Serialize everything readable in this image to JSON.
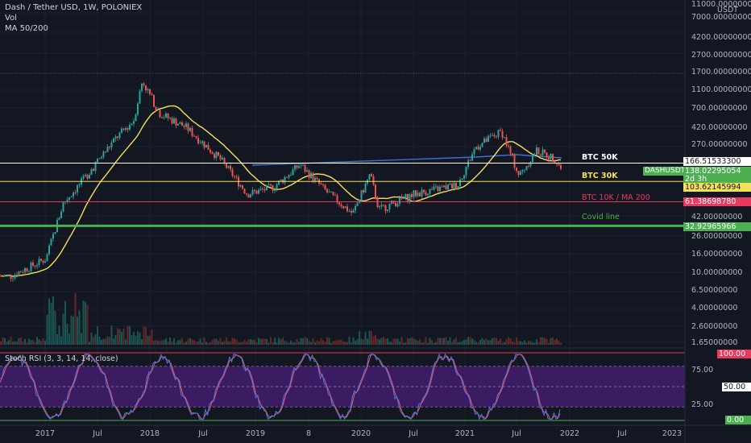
{
  "header": {
    "symbol_line": "Dash / Tether USD, 1W, POLONIEX",
    "vol_label": "Vol",
    "ma_label": "MA 50/200"
  },
  "price_axis": {
    "ticks": [
      "11000.00000000",
      "7000.00000000",
      "4200.00000000",
      "2700.00000000",
      "1700.00000000",
      "1100.00000000",
      "700.00000000",
      "420.00000000",
      "270.00000000",
      "42.00000000",
      "26.00000000",
      "16.00000000",
      "10.00000000",
      "6.50000000",
      "4.00000000",
      "2.60000000",
      "1.65000000"
    ],
    "unit": "USDT"
  },
  "price_tags": {
    "btc50k": "166.51533300",
    "symbol": "DASHUSDT",
    "last_price": "138.02295054",
    "countdown": "2d 3h",
    "btc30k": "103.62145994",
    "btc10k": "61.38698780",
    "covid": "32.92965966"
  },
  "annotations": {
    "btc50k": "BTC 50K",
    "btc30k": "BTC 30K",
    "btc10k": "BTC 10K / MA 200",
    "covid": "Covid line"
  },
  "rsi": {
    "title": "Stoch RSI (3, 3, 14, 14, close)",
    "ticks": [
      "75.00",
      "50.00",
      "25.00"
    ],
    "tag_top": "100.00",
    "tag_mid": "50.00",
    "tag_bottom": "0.00"
  },
  "time_axis": [
    "2017",
    "Jul",
    "2018",
    "Jul",
    "2019",
    "8",
    "2020",
    "Jul",
    "2021",
    "Jul",
    "2022",
    "Jul",
    "2023"
  ],
  "colors": {
    "background": "#131722",
    "up": "#26a69a",
    "down": "#ef5350",
    "ma50": "#f5e05b",
    "ma200": "#3d6fd8",
    "btc50k": "#ffffff",
    "btc30k": "#f5e05b",
    "btc10k": "#e8395f",
    "covid": "#4caf50",
    "rsi_fill": "#4a1e78"
  },
  "chart_data": {
    "type": "candlestick",
    "timeframe": "1W",
    "log_scale": true,
    "horizontal_lines": [
      {
        "label": "BTC 50K",
        "price": 166.515333
      },
      {
        "label": "BTC 30K",
        "price": 103.62145994
      },
      {
        "label": "BTC 10K / MA 200",
        "price": 61.3869878
      },
      {
        "label": "Covid line",
        "price": 32.92965966
      }
    ],
    "approx_close_path": [
      {
        "date": "2016-09",
        "price": 9
      },
      {
        "date": "2017-01",
        "price": 14
      },
      {
        "date": "2017-03",
        "price": 60
      },
      {
        "date": "2017-05",
        "price": 100
      },
      {
        "date": "2017-07",
        "price": 180
      },
      {
        "date": "2017-09",
        "price": 320
      },
      {
        "date": "2017-11",
        "price": 500
      },
      {
        "date": "2017-12",
        "price": 1400
      },
      {
        "date": "2018-02",
        "price": 600
      },
      {
        "date": "2018-05",
        "price": 420
      },
      {
        "date": "2018-09",
        "price": 180
      },
      {
        "date": "2018-12",
        "price": 75
      },
      {
        "date": "2019-03",
        "price": 90
      },
      {
        "date": "2019-06",
        "price": 160
      },
      {
        "date": "2019-09",
        "price": 80
      },
      {
        "date": "2019-12",
        "price": 45
      },
      {
        "date": "2020-02",
        "price": 125
      },
      {
        "date": "2020-03",
        "price": 50
      },
      {
        "date": "2020-07",
        "price": 75
      },
      {
        "date": "2020-12",
        "price": 95
      },
      {
        "date": "2021-02",
        "price": 250
      },
      {
        "date": "2021-05",
        "price": 380
      },
      {
        "date": "2021-07",
        "price": 120
      },
      {
        "date": "2021-09",
        "price": 230
      },
      {
        "date": "2021-11",
        "price": 190
      },
      {
        "date": "2021-12",
        "price": 138
      }
    ]
  }
}
